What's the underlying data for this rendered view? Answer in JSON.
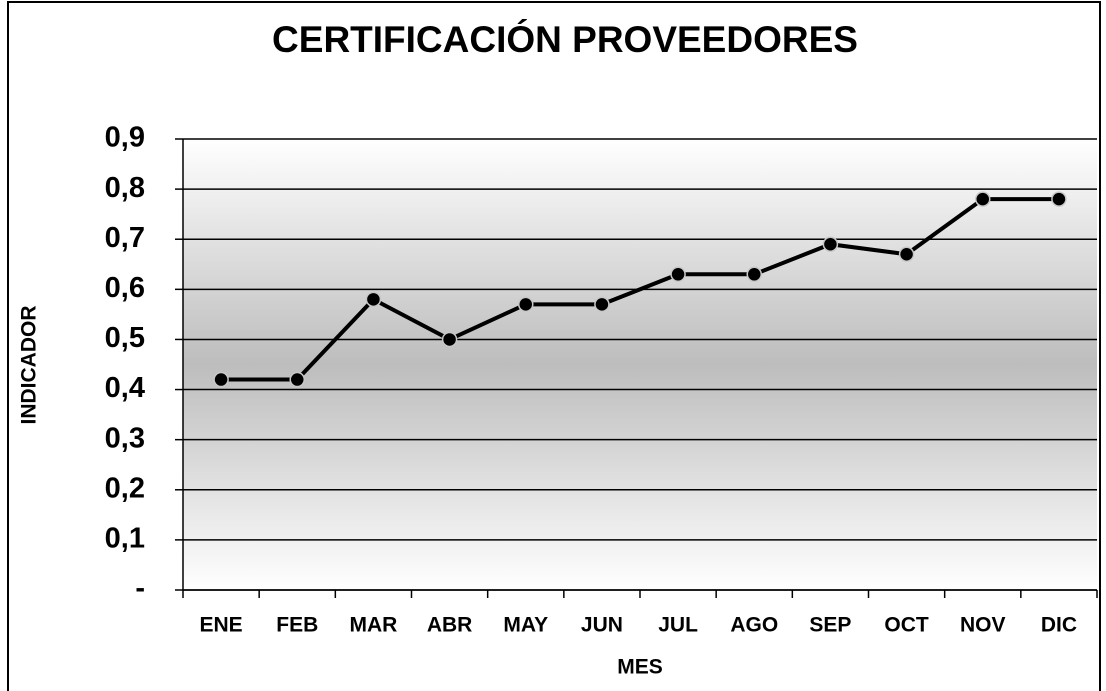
{
  "chart_data": {
    "type": "line",
    "title": "CERTIFICACIÓN PROVEEDORES",
    "x_label": "MES",
    "y_label": "INDICADOR",
    "categories": [
      "ENE",
      "FEB",
      "MAR",
      "ABR",
      "MAY",
      "JUN",
      "JUL",
      "AGO",
      "SEP",
      "OCT",
      "NOV",
      "DIC"
    ],
    "values": [
      0.42,
      0.42,
      0.58,
      0.5,
      0.57,
      0.57,
      0.63,
      0.63,
      0.69,
      0.67,
      0.78,
      0.78
    ],
    "color": "#000000",
    "ylim": [
      0,
      0.9
    ],
    "yticks": [
      {
        "value": 0,
        "label": "-"
      },
      {
        "value": 0.1,
        "label": "0,1"
      },
      {
        "value": 0.2,
        "label": "0,2"
      },
      {
        "value": 0.3,
        "label": "0,3"
      },
      {
        "value": 0.4,
        "label": "0,4"
      },
      {
        "value": 0.5,
        "label": "0,5"
      },
      {
        "value": 0.6,
        "label": "0,6"
      },
      {
        "value": 0.7,
        "label": "0,7"
      },
      {
        "value": 0.8,
        "label": "0,8"
      },
      {
        "value": 0.9,
        "label": "0,9"
      }
    ],
    "grid": true
  }
}
